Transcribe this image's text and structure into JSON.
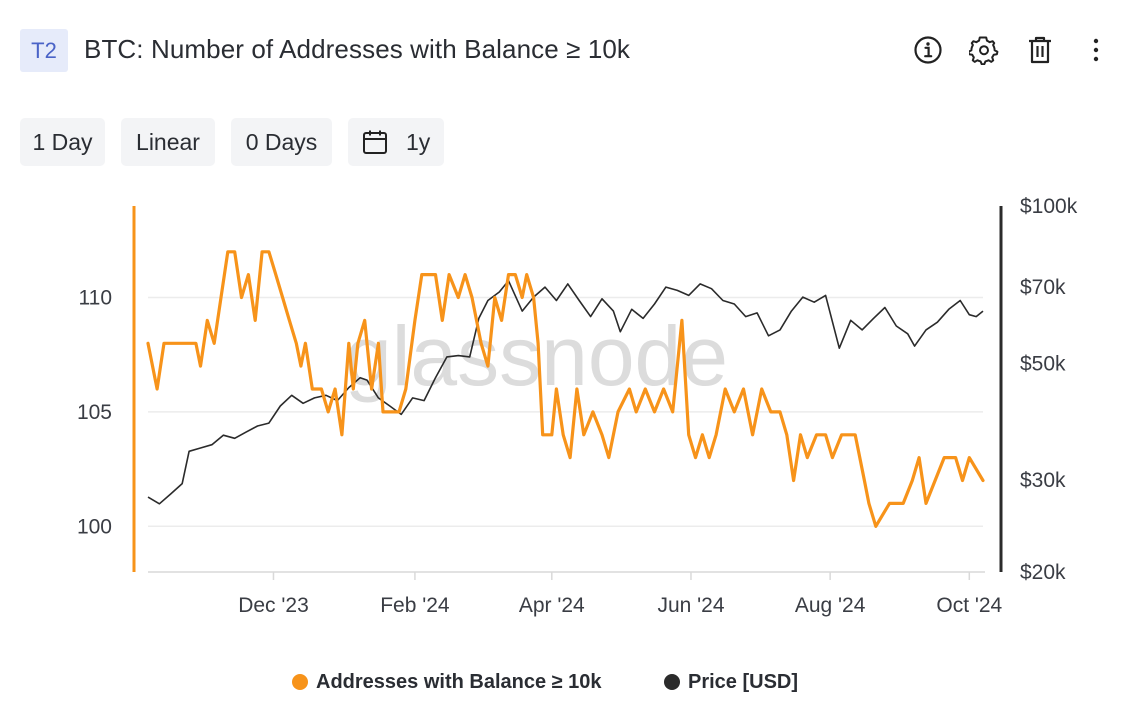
{
  "header": {
    "tag": "T2",
    "title": "BTC: Number of Addresses with Balance ≥ 10k",
    "icons": [
      "info-icon",
      "gear-icon",
      "trash-icon",
      "more-vertical-icon"
    ]
  },
  "controls": {
    "resolution": "1 Day",
    "scale": "Linear",
    "moving_average": "0 Days",
    "range": "1y",
    "range_icon": "calendar-icon"
  },
  "watermark": "glassnode",
  "colors": {
    "addresses": "#f7931a",
    "price": "#2b2b2b",
    "grid": "#ececec",
    "axis": "#d9d9d9"
  },
  "legend": [
    {
      "label": "Addresses with Balance ≥ 10k",
      "color": "#f7931a"
    },
    {
      "label": "Price [USD]",
      "color": "#2b2b2b"
    }
  ],
  "chart_data": {
    "type": "line",
    "x_range": [
      "2023-10-07",
      "2024-10-07"
    ],
    "x_ticks": [
      {
        "date": "2023-12-01",
        "label": "Dec '23"
      },
      {
        "date": "2024-02-01",
        "label": "Feb '24"
      },
      {
        "date": "2024-04-01",
        "label": "Apr '24"
      },
      {
        "date": "2024-06-01",
        "label": "Jun '24"
      },
      {
        "date": "2024-08-01",
        "label": "Aug '24"
      },
      {
        "date": "2024-10-01",
        "label": "Oct '24"
      }
    ],
    "y_left": {
      "ticks": [
        100,
        105,
        110
      ],
      "range": [
        98,
        114
      ]
    },
    "y_right": {
      "scale": "log",
      "ticks": [
        {
          "value": 20000,
          "label": "$20k"
        },
        {
          "value": 30000,
          "label": "$30k"
        },
        {
          "value": 50000,
          "label": "$50k"
        },
        {
          "value": 70000,
          "label": "$70k"
        },
        {
          "value": 100000,
          "label": "$100k"
        }
      ],
      "range": [
        20000,
        100000
      ]
    },
    "series": [
      {
        "name": "Addresses with Balance ≥ 10k",
        "axis": "left",
        "points": [
          [
            "2023-10-07",
            108
          ],
          [
            "2023-10-11",
            106
          ],
          [
            "2023-10-14",
            108
          ],
          [
            "2023-10-28",
            108
          ],
          [
            "2023-10-30",
            107
          ],
          [
            "2023-11-02",
            109
          ],
          [
            "2023-11-05",
            108
          ],
          [
            "2023-11-08",
            110
          ],
          [
            "2023-11-11",
            112
          ],
          [
            "2023-11-14",
            112
          ],
          [
            "2023-11-17",
            110
          ],
          [
            "2023-11-20",
            111
          ],
          [
            "2023-11-23",
            109
          ],
          [
            "2023-11-26",
            112
          ],
          [
            "2023-11-29",
            112
          ],
          [
            "2023-12-02",
            111
          ],
          [
            "2023-12-05",
            110
          ],
          [
            "2023-12-08",
            109
          ],
          [
            "2023-12-11",
            108
          ],
          [
            "2023-12-13",
            107
          ],
          [
            "2023-12-15",
            108
          ],
          [
            "2023-12-18",
            106
          ],
          [
            "2023-12-22",
            106
          ],
          [
            "2023-12-25",
            105
          ],
          [
            "2023-12-28",
            106
          ],
          [
            "2023-12-31",
            104
          ],
          [
            "2024-01-03",
            108
          ],
          [
            "2024-01-05",
            106
          ],
          [
            "2024-01-07",
            108
          ],
          [
            "2024-01-10",
            109
          ],
          [
            "2024-01-13",
            106
          ],
          [
            "2024-01-16",
            108
          ],
          [
            "2024-01-18",
            105
          ],
          [
            "2024-01-25",
            105
          ],
          [
            "2024-01-28",
            106
          ],
          [
            "2024-02-01",
            109
          ],
          [
            "2024-02-04",
            111
          ],
          [
            "2024-02-10",
            111
          ],
          [
            "2024-02-13",
            109
          ],
          [
            "2024-02-16",
            111
          ],
          [
            "2024-02-20",
            110
          ],
          [
            "2024-02-23",
            111
          ],
          [
            "2024-02-26",
            110
          ],
          [
            "2024-03-01",
            108
          ],
          [
            "2024-03-04",
            107
          ],
          [
            "2024-03-07",
            110
          ],
          [
            "2024-03-10",
            109
          ],
          [
            "2024-03-13",
            111
          ],
          [
            "2024-03-16",
            111
          ],
          [
            "2024-03-19",
            110
          ],
          [
            "2024-03-21",
            111
          ],
          [
            "2024-03-24",
            110
          ],
          [
            "2024-03-26",
            108
          ],
          [
            "2024-03-28",
            104
          ],
          [
            "2024-04-01",
            104
          ],
          [
            "2024-04-03",
            106
          ],
          [
            "2024-04-06",
            104
          ],
          [
            "2024-04-09",
            103
          ],
          [
            "2024-04-12",
            106
          ],
          [
            "2024-04-15",
            104
          ],
          [
            "2024-04-19",
            105
          ],
          [
            "2024-04-23",
            104
          ],
          [
            "2024-04-26",
            103
          ],
          [
            "2024-04-30",
            105
          ],
          [
            "2024-05-05",
            106
          ],
          [
            "2024-05-08",
            105
          ],
          [
            "2024-05-12",
            106
          ],
          [
            "2024-05-16",
            105
          ],
          [
            "2024-05-20",
            106
          ],
          [
            "2024-05-24",
            105
          ],
          [
            "2024-05-28",
            109
          ],
          [
            "2024-05-31",
            104
          ],
          [
            "2024-06-03",
            103
          ],
          [
            "2024-06-06",
            104
          ],
          [
            "2024-06-09",
            103
          ],
          [
            "2024-06-12",
            104
          ],
          [
            "2024-06-16",
            106
          ],
          [
            "2024-06-20",
            105
          ],
          [
            "2024-06-24",
            106
          ],
          [
            "2024-06-28",
            104
          ],
          [
            "2024-07-02",
            106
          ],
          [
            "2024-07-06",
            105
          ],
          [
            "2024-07-10",
            105
          ],
          [
            "2024-07-13",
            104
          ],
          [
            "2024-07-16",
            102
          ],
          [
            "2024-07-19",
            104
          ],
          [
            "2024-07-22",
            103
          ],
          [
            "2024-07-26",
            104
          ],
          [
            "2024-07-30",
            104
          ],
          [
            "2024-08-02",
            103
          ],
          [
            "2024-08-06",
            104
          ],
          [
            "2024-08-12",
            104
          ],
          [
            "2024-08-16",
            102
          ],
          [
            "2024-08-18",
            101
          ],
          [
            "2024-08-21",
            100
          ],
          [
            "2024-08-27",
            101
          ],
          [
            "2024-09-02",
            101
          ],
          [
            "2024-09-06",
            102
          ],
          [
            "2024-09-09",
            103
          ],
          [
            "2024-09-12",
            101
          ],
          [
            "2024-09-16",
            102
          ],
          [
            "2024-09-20",
            103
          ],
          [
            "2024-09-25",
            103
          ],
          [
            "2024-09-28",
            102
          ],
          [
            "2024-10-01",
            103
          ],
          [
            "2024-10-07",
            102
          ]
        ]
      },
      {
        "name": "Price [USD]",
        "axis": "right",
        "points": [
          [
            "2023-10-07",
            27800
          ],
          [
            "2023-10-12",
            27000
          ],
          [
            "2023-10-17",
            28200
          ],
          [
            "2023-10-22",
            29500
          ],
          [
            "2023-10-25",
            34000
          ],
          [
            "2023-10-30",
            34500
          ],
          [
            "2023-11-04",
            35000
          ],
          [
            "2023-11-09",
            36500
          ],
          [
            "2023-11-14",
            36000
          ],
          [
            "2023-11-19",
            37000
          ],
          [
            "2023-11-24",
            38000
          ],
          [
            "2023-11-29",
            38500
          ],
          [
            "2023-12-04",
            41500
          ],
          [
            "2023-12-09",
            43500
          ],
          [
            "2023-12-14",
            42000
          ],
          [
            "2023-12-19",
            43000
          ],
          [
            "2023-12-24",
            43500
          ],
          [
            "2023-12-29",
            42500
          ],
          [
            "2024-01-03",
            45000
          ],
          [
            "2024-01-08",
            47000
          ],
          [
            "2024-01-11",
            46500
          ],
          [
            "2024-01-16",
            43000
          ],
          [
            "2024-01-21",
            41500
          ],
          [
            "2024-01-26",
            40000
          ],
          [
            "2024-01-31",
            43000
          ],
          [
            "2024-02-05",
            42500
          ],
          [
            "2024-02-10",
            47000
          ],
          [
            "2024-02-15",
            51500
          ],
          [
            "2024-02-20",
            51800
          ],
          [
            "2024-02-25",
            51500
          ],
          [
            "2024-02-29",
            61000
          ],
          [
            "2024-03-04",
            66000
          ],
          [
            "2024-03-09",
            68500
          ],
          [
            "2024-03-13",
            72000
          ],
          [
            "2024-03-19",
            63000
          ],
          [
            "2024-03-24",
            67000
          ],
          [
            "2024-03-29",
            70000
          ],
          [
            "2024-04-03",
            66000
          ],
          [
            "2024-04-08",
            71000
          ],
          [
            "2024-04-13",
            66000
          ],
          [
            "2024-04-18",
            61500
          ],
          [
            "2024-04-23",
            66500
          ],
          [
            "2024-04-28",
            63000
          ],
          [
            "2024-05-01",
            57500
          ],
          [
            "2024-05-06",
            63500
          ],
          [
            "2024-05-11",
            61000
          ],
          [
            "2024-05-16",
            65000
          ],
          [
            "2024-05-21",
            70000
          ],
          [
            "2024-05-26",
            69000
          ],
          [
            "2024-05-31",
            67500
          ],
          [
            "2024-06-05",
            71000
          ],
          [
            "2024-06-10",
            69500
          ],
          [
            "2024-06-15",
            66000
          ],
          [
            "2024-06-20",
            65000
          ],
          [
            "2024-06-25",
            61500
          ],
          [
            "2024-06-30",
            62500
          ],
          [
            "2024-07-05",
            56500
          ],
          [
            "2024-07-10",
            58000
          ],
          [
            "2024-07-15",
            63000
          ],
          [
            "2024-07-20",
            67000
          ],
          [
            "2024-07-25",
            65500
          ],
          [
            "2024-07-30",
            67500
          ],
          [
            "2024-08-05",
            53500
          ],
          [
            "2024-08-10",
            60500
          ],
          [
            "2024-08-15",
            58000
          ],
          [
            "2024-08-20",
            61000
          ],
          [
            "2024-08-25",
            64000
          ],
          [
            "2024-08-30",
            59000
          ],
          [
            "2024-09-04",
            57000
          ],
          [
            "2024-09-07",
            54000
          ],
          [
            "2024-09-12",
            58000
          ],
          [
            "2024-09-17",
            60000
          ],
          [
            "2024-09-22",
            63500
          ],
          [
            "2024-09-27",
            66000
          ],
          [
            "2024-10-01",
            62000
          ],
          [
            "2024-10-04",
            61500
          ],
          [
            "2024-10-07",
            63000
          ]
        ]
      }
    ]
  }
}
